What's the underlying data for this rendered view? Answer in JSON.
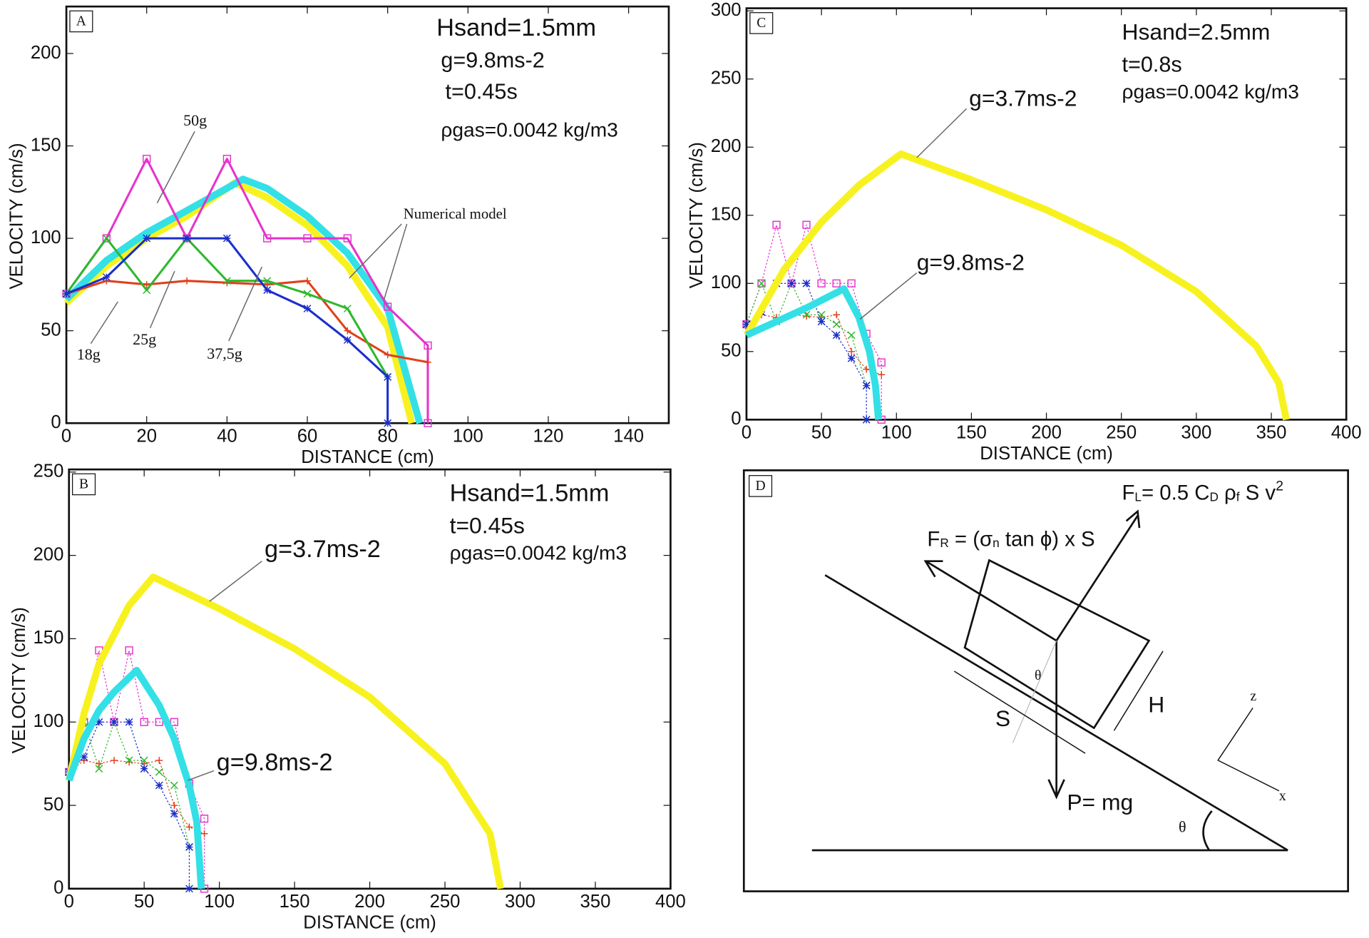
{
  "chart_data": [
    {
      "type": "line",
      "panel": "A",
      "x_label": "DISTANCE (cm)",
      "y_label": "VELOCITY (cm/s)",
      "xlim": [
        0,
        150
      ],
      "ylim": [
        0,
        224
      ],
      "xticks": [
        0,
        20,
        40,
        60,
        80,
        100,
        120,
        140
      ],
      "yticks": [
        0,
        50,
        100,
        150,
        200
      ],
      "grid": false,
      "annotations": [
        "Hsand=1.5mm",
        "g=9.8ms-2",
        "t=0.45s",
        "ρgas=0.0042 kg/m3",
        "Numerical model"
      ],
      "series": [
        {
          "color": "#f7f21f",
          "marker": "none",
          "line": "thick",
          "x": [
            0,
            10,
            20,
            30,
            42,
            50,
            60,
            70,
            80,
            86
          ],
          "values": [
            65,
            85,
            100,
            112,
            130,
            122,
            107,
            85,
            52,
            0
          ]
        },
        {
          "color": "#33e0e6",
          "marker": "none",
          "line": "thick",
          "x": [
            0,
            10,
            20,
            30,
            44,
            50,
            60,
            70,
            80,
            88
          ],
          "values": [
            67,
            88,
            103,
            115,
            132,
            127,
            112,
            92,
            62,
            0
          ]
        },
        {
          "name": "50g",
          "color": "#e633cc",
          "marker": "square",
          "line": "solid",
          "x": [
            0,
            10,
            20,
            30,
            40,
            50,
            60,
            70,
            80,
            90,
            90
          ],
          "values": [
            70,
            100,
            143,
            100,
            143,
            100,
            100,
            100,
            63,
            42,
            0
          ]
        },
        {
          "name": "18g",
          "color": "#e0401a",
          "marker": "plus",
          "line": "solid",
          "x": [
            0,
            10,
            20,
            30,
            40,
            50,
            60,
            70,
            80,
            90
          ],
          "values": [
            70,
            77,
            75,
            77,
            76,
            75,
            77,
            50,
            37,
            33
          ]
        },
        {
          "name": "25g",
          "color": "#2eb82e",
          "marker": "x",
          "line": "solid",
          "x": [
            0,
            10,
            20,
            30,
            40,
            50,
            60,
            70,
            80
          ],
          "values": [
            70,
            100,
            72,
            100,
            77,
            77,
            70,
            62,
            25
          ]
        },
        {
          "name": "37,5g",
          "color": "#1a2ecc",
          "marker": "star",
          "line": "solid",
          "x": [
            0,
            10,
            20,
            30,
            40,
            50,
            60,
            70,
            80,
            80
          ],
          "values": [
            70,
            79,
            100,
            100,
            100,
            72,
            62,
            45,
            25,
            0
          ]
        }
      ]
    },
    {
      "type": "line",
      "panel": "C",
      "x_label": "DISTANCE (cm)",
      "y_label": "VELOCITY (cm/s)",
      "xlim": [
        0,
        400
      ],
      "ylim": [
        0,
        300
      ],
      "xticks": [
        0,
        50,
        100,
        150,
        200,
        250,
        300,
        350,
        400
      ],
      "yticks": [
        0,
        50,
        100,
        150,
        200,
        250,
        300
      ],
      "grid": false,
      "annotations": [
        "Hsand=2.5mm",
        "t=0.8s",
        "ρgas=0.0042 kg/m3",
        "g=3.7ms-2",
        "g=9.8ms-2"
      ],
      "series": [
        {
          "color": "#e633cc",
          "marker": "square",
          "line": "dotted",
          "x": [
            0,
            10,
            20,
            30,
            40,
            50,
            60,
            70,
            80,
            90,
            90
          ],
          "values": [
            70,
            100,
            143,
            100,
            143,
            100,
            100,
            100,
            63,
            42,
            0
          ]
        },
        {
          "color": "#e0401a",
          "marker": "plus",
          "line": "dotted",
          "x": [
            0,
            10,
            20,
            30,
            40,
            50,
            60,
            70,
            80,
            90
          ],
          "values": [
            70,
            77,
            75,
            77,
            76,
            75,
            77,
            50,
            37,
            33
          ]
        },
        {
          "color": "#2eb82e",
          "marker": "x",
          "line": "dotted",
          "x": [
            0,
            10,
            20,
            30,
            40,
            50,
            60,
            70,
            80
          ],
          "values": [
            70,
            100,
            72,
            100,
            77,
            77,
            70,
            62,
            25
          ]
        },
        {
          "color": "#1a2ecc",
          "marker": "star",
          "line": "dotted",
          "x": [
            0,
            10,
            20,
            30,
            40,
            50,
            60,
            70,
            80,
            80
          ],
          "values": [
            70,
            79,
            100,
            100,
            100,
            72,
            62,
            45,
            25,
            0
          ]
        },
        {
          "color": "#f7f21f",
          "marker": "none",
          "line": "thick",
          "x": [
            0,
            25,
            50,
            75,
            103,
            150,
            200,
            250,
            300,
            340,
            355,
            360
          ],
          "values": [
            62,
            110,
            145,
            172,
            195,
            176,
            154,
            128,
            94,
            54,
            27,
            0
          ]
        },
        {
          "color": "#33e0e6",
          "marker": "none",
          "line": "thick",
          "x": [
            0,
            20,
            40,
            65,
            75,
            82,
            86,
            88
          ],
          "values": [
            62,
            72,
            82,
            96,
            75,
            50,
            25,
            0
          ]
        }
      ]
    },
    {
      "type": "line",
      "panel": "B",
      "x_label": "DISTANCE (cm)",
      "y_label": "VELOCITY (cm/s)",
      "xlim": [
        0,
        400
      ],
      "ylim": [
        0,
        250
      ],
      "xticks": [
        0,
        50,
        100,
        150,
        200,
        250,
        300,
        350,
        400
      ],
      "yticks": [
        0,
        50,
        100,
        150,
        200,
        250
      ],
      "grid": false,
      "annotations": [
        "Hsand=1.5mm",
        "t=0.45s",
        "ρgas=0.0042 kg/m3",
        "g=3.7ms-2",
        "g=9.8ms-2"
      ],
      "series": [
        {
          "color": "#e633cc",
          "marker": "square",
          "line": "dotted",
          "x": [
            0,
            10,
            20,
            30,
            40,
            50,
            60,
            70,
            80,
            90,
            90
          ],
          "values": [
            70,
            100,
            143,
            100,
            143,
            100,
            100,
            100,
            63,
            42,
            0
          ]
        },
        {
          "color": "#e0401a",
          "marker": "plus",
          "line": "dotted",
          "x": [
            0,
            10,
            20,
            30,
            40,
            50,
            60,
            70,
            80,
            90
          ],
          "values": [
            70,
            77,
            75,
            77,
            76,
            75,
            77,
            50,
            37,
            33
          ]
        },
        {
          "color": "#2eb82e",
          "marker": "x",
          "line": "dotted",
          "x": [
            0,
            10,
            20,
            30,
            40,
            50,
            60,
            70,
            80
          ],
          "values": [
            70,
            100,
            72,
            100,
            77,
            77,
            70,
            62,
            25
          ]
        },
        {
          "color": "#1a2ecc",
          "marker": "star",
          "line": "dotted",
          "x": [
            0,
            10,
            20,
            30,
            40,
            50,
            60,
            70,
            80,
            80
          ],
          "values": [
            70,
            79,
            100,
            100,
            100,
            72,
            62,
            45,
            25,
            0
          ]
        },
        {
          "color": "#f7f21f",
          "marker": "none",
          "line": "thick",
          "x": [
            0,
            10,
            20,
            40,
            56,
            100,
            150,
            200,
            250,
            280,
            287
          ],
          "values": [
            65,
            105,
            135,
            170,
            187,
            168,
            144,
            115,
            75,
            33,
            0
          ]
        },
        {
          "color": "#33e0e6",
          "marker": "none",
          "line": "thick",
          "x": [
            0,
            10,
            20,
            30,
            45,
            60,
            70,
            80,
            85,
            88
          ],
          "values": [
            65,
            90,
            107,
            118,
            131,
            110,
            90,
            62,
            40,
            0
          ]
        }
      ]
    }
  ],
  "diagram": {
    "panel": "D",
    "lift": [
      "F",
      "L",
      "= 0.5 C",
      "D",
      " ρ",
      "f",
      " S v",
      "2"
    ],
    "friction": [
      "F",
      "R",
      " = (σ",
      "n",
      " tan ϕ) x S"
    ],
    "weight": "P= mg",
    "box_angle": "θ",
    "slope_angle": "θ",
    "height": "H",
    "side": "S",
    "z_axis": "z",
    "x_axis": "x"
  }
}
